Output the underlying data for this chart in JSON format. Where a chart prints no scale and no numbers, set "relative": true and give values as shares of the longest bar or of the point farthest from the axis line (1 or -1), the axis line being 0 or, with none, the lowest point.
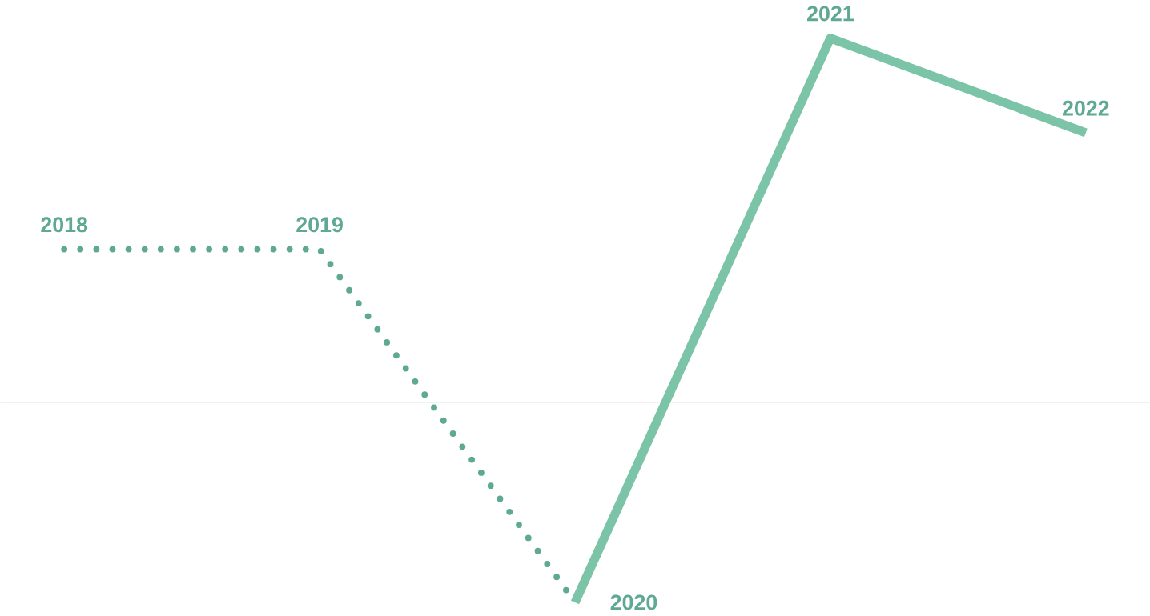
{
  "chart_data": {
    "type": "line",
    "relative": true,
    "categories": [
      "2018",
      "2019",
      "2020",
      "2021",
      "2022"
    ],
    "series": [
      {
        "color": "#5fa894",
        "line_style": "dotted",
        "values": [
          0.42,
          0.42,
          -0.55,
          null,
          null
        ]
      },
      {
        "color": "#7cc4a8",
        "line_style": "solid",
        "values": [
          null,
          null,
          -0.55,
          1,
          0.74
        ]
      }
    ]
  }
}
